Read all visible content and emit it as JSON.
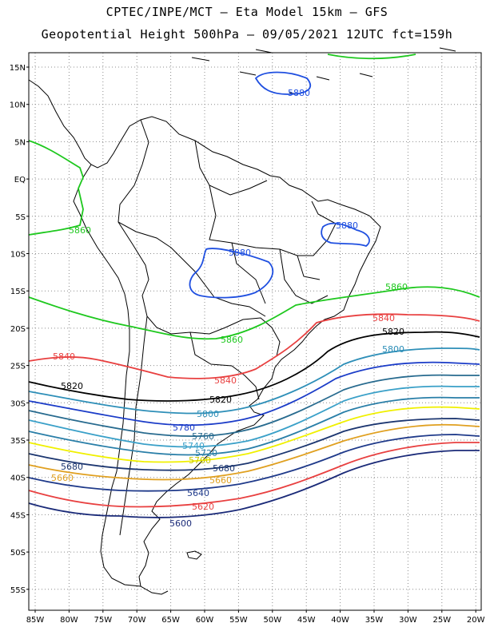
{
  "header": {
    "line1": "CPTEC/INPE/MCT –  Eta Model 15km – GFS",
    "line2": "Geopotential Height 500hPa – 09/05/2021 12UTC fct=159h"
  },
  "axes": {
    "lat_labels": [
      "15N",
      "10N",
      "5N",
      "EQ",
      "5S",
      "10S",
      "15S",
      "20S",
      "25S",
      "30S",
      "35S",
      "40S",
      "45S",
      "50S",
      "55S"
    ],
    "lon_labels": [
      "85W",
      "80W",
      "75W",
      "70W",
      "65W",
      "60W",
      "55W",
      "50W",
      "45W",
      "40W",
      "35W",
      "30W",
      "25W",
      "20W"
    ]
  },
  "colors": {
    "5880": "#1f4fe0",
    "5860": "#1ec81e",
    "5840": "#e84040",
    "5820": "#000000",
    "5800": "#2e8fb8",
    "5780": "#1b3cc8",
    "5760": "#286b8f",
    "5740": "#3aa0c8",
    "5720": "#2a7fa8",
    "5700": "#f0f000",
    "5680": "#1c3670",
    "5660": "#e0a020",
    "5640": "#1f3a8a",
    "5620": "#e84040",
    "5600": "#1a2a78",
    "coast": "#000000",
    "grid": "#8c8c8c"
  },
  "contour_labels": [
    {
      "text": "5880",
      "id": "l5880a"
    },
    {
      "text": "5880",
      "id": "l5880b"
    },
    {
      "text": "5880",
      "id": "l5880c"
    },
    {
      "text": "5860",
      "id": "l5860a"
    },
    {
      "text": "5860",
      "id": "l5860b"
    },
    {
      "text": "5860",
      "id": "l5860c"
    },
    {
      "text": "5840",
      "id": "l5840a"
    },
    {
      "text": "5840",
      "id": "l5840b"
    },
    {
      "text": "5840",
      "id": "l5840c"
    },
    {
      "text": "5820",
      "id": "l5820a"
    },
    {
      "text": "5820",
      "id": "l5820b"
    },
    {
      "text": "5820",
      "id": "l5820c"
    },
    {
      "text": "5800",
      "id": "l5800a"
    },
    {
      "text": "5800",
      "id": "l5800b"
    },
    {
      "text": "5780",
      "id": "l5780"
    },
    {
      "text": "5760",
      "id": "l5760"
    },
    {
      "text": "5740",
      "id": "l5740"
    },
    {
      "text": "5720",
      "id": "l5720"
    },
    {
      "text": "5700",
      "id": "l5700"
    },
    {
      "text": "5680",
      "id": "l5680a"
    },
    {
      "text": "5680",
      "id": "l5680b"
    },
    {
      "text": "5660",
      "id": "l5660a"
    },
    {
      "text": "5660",
      "id": "l5660b"
    },
    {
      "text": "5640",
      "id": "l5640"
    },
    {
      "text": "5620",
      "id": "l5620"
    },
    {
      "text": "5600",
      "id": "l5600"
    }
  ]
}
